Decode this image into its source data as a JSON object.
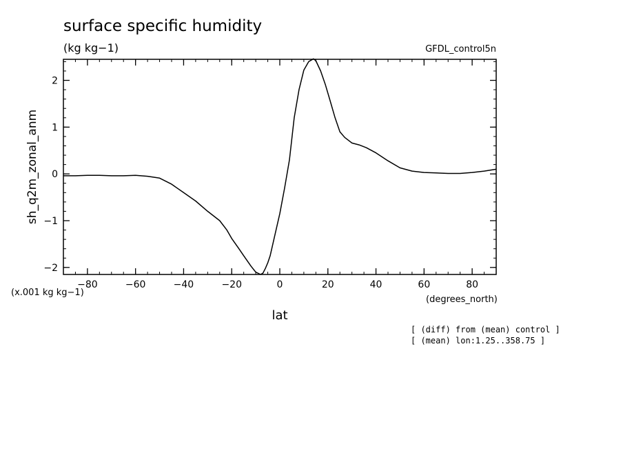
{
  "chart_data": {
    "type": "line",
    "title": "surface specific humidity",
    "subtitle": "(kg kg−1)",
    "experiment": "GFDL_control5n",
    "xlabel": "lat",
    "x_units": "(degrees_north)",
    "ylabel": "sh_q2m_zonal_anm",
    "y_scale_note": "(x.001 kg kg−1)",
    "xlim": [
      -90,
      90
    ],
    "ylim": [
      -2.15,
      2.45
    ],
    "x_ticks": [
      -80,
      -60,
      -40,
      -20,
      0,
      20,
      40,
      60,
      80
    ],
    "x_tick_labels": [
      "−80",
      "−60",
      "−40",
      "−20",
      "0",
      "20",
      "40",
      "60",
      "80"
    ],
    "y_ticks": [
      -2,
      -1,
      0,
      1,
      2
    ],
    "y_tick_labels": [
      "−2",
      "−1",
      "0",
      "1",
      "2"
    ],
    "grid": false,
    "series": [
      {
        "x": [
          -90,
          -85,
          -80,
          -75,
          -70,
          -65,
          -60,
          -55,
          -50,
          -45,
          -40,
          -35,
          -30,
          -25,
          -22,
          -20,
          -17,
          -15,
          -12,
          -10,
          -8,
          -7,
          -6,
          -5,
          -4,
          -2,
          0,
          2,
          4,
          6,
          8,
          10,
          12,
          14,
          15,
          17,
          19,
          21,
          23,
          25,
          27,
          30,
          33,
          36,
          40,
          45,
          50,
          55,
          60,
          65,
          70,
          75,
          80,
          85,
          90
        ],
        "y": [
          -0.04,
          -0.04,
          -0.03,
          -0.03,
          -0.04,
          -0.04,
          -0.03,
          -0.05,
          -0.09,
          -0.22,
          -0.4,
          -0.58,
          -0.8,
          -1.0,
          -1.2,
          -1.38,
          -1.6,
          -1.75,
          -1.97,
          -2.1,
          -2.15,
          -2.12,
          -2.02,
          -1.9,
          -1.75,
          -1.3,
          -0.85,
          -0.3,
          0.3,
          1.2,
          1.8,
          2.22,
          2.4,
          2.46,
          2.42,
          2.2,
          1.9,
          1.55,
          1.2,
          0.9,
          0.78,
          0.66,
          0.62,
          0.56,
          0.45,
          0.28,
          0.13,
          0.06,
          0.03,
          0.02,
          0.01,
          0.01,
          0.03,
          0.06,
          0.1
        ]
      }
    ]
  },
  "notes": {
    "line1": "[ (diff) from (mean) control ]",
    "line2": "[ (mean) lon:1.25..358.75 ]"
  }
}
